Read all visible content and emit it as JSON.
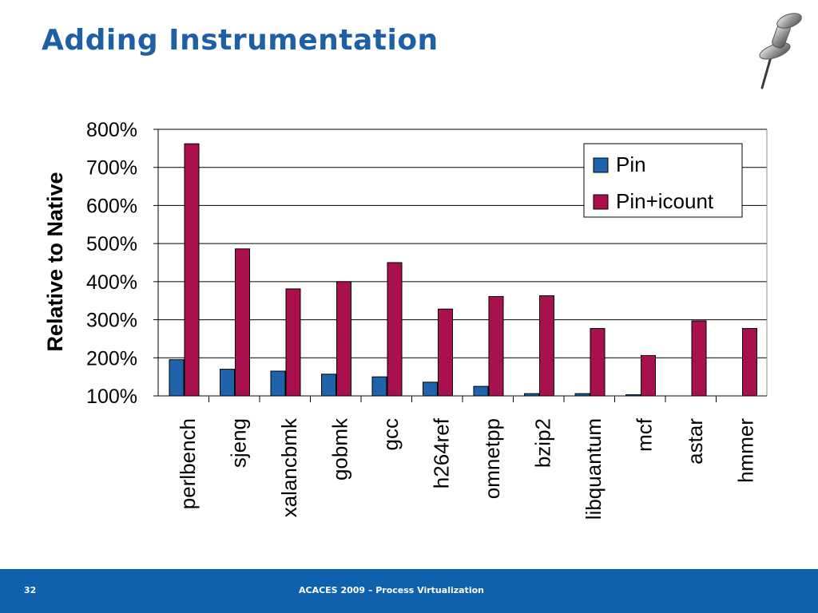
{
  "slide": {
    "title": "Adding Instrumentation",
    "page_number": "32",
    "footer": "ACACES 2009 – Process Virtualization"
  },
  "colors": {
    "title": "#1f5fa6",
    "pin": "#1f63aa",
    "pin_icount": "#a8104e",
    "footer_bg": "#0f60ad"
  },
  "icons": {
    "decoration": "pushpin-icon"
  },
  "chart_data": {
    "type": "bar",
    "ylabel": "Relative to Native",
    "xlabel": "",
    "ylim": [
      100,
      800
    ],
    "yticks": [
      100,
      200,
      300,
      400,
      500,
      600,
      700,
      800
    ],
    "ytick_labels": [
      "100%",
      "200%",
      "300%",
      "400%",
      "500%",
      "600%",
      "700%",
      "800%"
    ],
    "grid": true,
    "legend": "top-right",
    "categories": [
      "perlbench",
      "sjeng",
      "xalancbmk",
      "gobmk",
      "gcc",
      "h264ref",
      "omnetpp",
      "bzip2",
      "libquantum",
      "mcf",
      "astar",
      "hmmer"
    ],
    "series": [
      {
        "name": "Pin",
        "color": "#1f63aa",
        "values": [
          195,
          170,
          165,
          157,
          150,
          136,
          125,
          106,
          106,
          103,
          100,
          100
        ]
      },
      {
        "name": "Pin+icount",
        "color": "#a8104e",
        "values": [
          762,
          486,
          381,
          400,
          450,
          328,
          361,
          363,
          277,
          206,
          297,
          277
        ]
      }
    ]
  }
}
